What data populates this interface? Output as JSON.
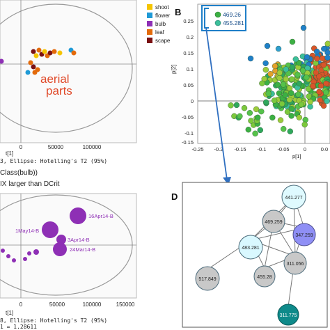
{
  "figure": {
    "panelA": {
      "legend": [
        {
          "label": "shoot",
          "color": "#f5c400"
        },
        {
          "label": "flower",
          "color": "#1f9ad6"
        },
        {
          "label": "bulb",
          "color": "#8e2fb5"
        },
        {
          "label": "leaf",
          "color": "#e36a0a"
        },
        {
          "label": "scape",
          "color": "#7a1012"
        }
      ],
      "annotation_line1": "aerial",
      "annotation_line2": "parts",
      "x_ticks": [
        "0",
        "50000",
        "100000"
      ],
      "x_label": "t[1]",
      "ellipse_caption": "3, Ellipse: Hotelling's T2 (95%)"
    },
    "mid_text1": "Class(bulb))",
    "mid_text2": "IX larger than DCrit",
    "panelC": {
      "labels": [
        "16Apr14-B",
        "1May14-B",
        "3Apr14-B",
        "24Mar14-B"
      ],
      "x_ticks": [
        "0",
        "50000",
        "100000",
        "150000"
      ],
      "x_label": "t[1]",
      "caption1": "8, Ellipse: Hotelling's T2 (95%)",
      "caption2": "1 = 1.28611",
      "color": "#8e2fb5"
    },
    "panelB": {
      "label": "B",
      "legend": [
        {
          "label": "469.26",
          "color": "#3cb043"
        },
        {
          "label": "455.281",
          "color": "#3cbf9a"
        }
      ],
      "y_ticks": [
        "0.25",
        "0.2",
        "0.15",
        "0.1",
        "0.05",
        "0",
        "-0.05",
        "-0.1",
        "-0.15"
      ],
      "x_ticks": [
        "-0.25",
        "-0.2",
        "-0.15",
        "-0.1",
        "-0.05",
        "0",
        "0.0"
      ],
      "y_label": "p[2]",
      "x_label": "p[1]"
    },
    "panelD": {
      "label": "D",
      "nodes": [
        {
          "id": "441.277",
          "color": "#dffaff"
        },
        {
          "id": "469.259",
          "color": "#c8c8c8"
        },
        {
          "id": "347.259",
          "color": "#8f8ff5"
        },
        {
          "id": "483.281",
          "color": "#d9f8ff"
        },
        {
          "id": "311.056",
          "color": "#c8c8c8"
        },
        {
          "id": "455.28",
          "color": "#c8c8c8"
        },
        {
          "id": "517.849",
          "color": "#c8c8c8"
        },
        {
          "id": "311.775",
          "color": "#0e8a8a"
        }
      ]
    }
  }
}
